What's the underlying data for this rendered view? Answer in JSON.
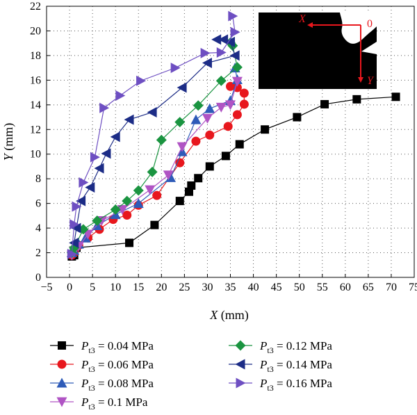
{
  "chart_data": {
    "type": "line",
    "xlabel": "X (mm)",
    "ylabel": "Y (mm)",
    "xlim": [
      -5,
      75
    ],
    "ylim": [
      0,
      22
    ],
    "xticks": [
      "−5",
      "0",
      "5",
      "10",
      "15",
      "20",
      "25",
      "30",
      "35",
      "40",
      "45",
      "50",
      "55",
      "60",
      "65",
      "70",
      "75"
    ],
    "yticks": [
      "0",
      "2",
      "4",
      "6",
      "8",
      "10",
      "12",
      "14",
      "16",
      "18",
      "20",
      "22"
    ],
    "grid": true,
    "legend_position": "bottom",
    "inset": {
      "x_label": "X",
      "origin_label": "0",
      "y_label": "Y",
      "arrow_color": "#e8171d"
    },
    "series": [
      {
        "name": "Pt3 = 0.04 MPa",
        "label_main": "P",
        "label_sub": "t3",
        "label_rest": " = 0.04 MPa",
        "marker": "square",
        "color": "#000000",
        "x": [
          0.5,
          1.0,
          1.5,
          13,
          18.5,
          24,
          26,
          26.5,
          28,
          30.5,
          34,
          37,
          42.5,
          49.5,
          55.5,
          62.5,
          71
        ],
        "y": [
          1.7,
          1.8,
          2.4,
          2.8,
          4.25,
          6.2,
          6.95,
          7.45,
          8.05,
          9.0,
          9.85,
          10.8,
          12.0,
          13.0,
          14.05,
          14.45,
          14.65
        ]
      },
      {
        "name": "Pt3 = 0.06 MPa",
        "label_main": "P",
        "label_sub": "t3",
        "label_rest": " = 0.06 MPa",
        "marker": "circle",
        "color": "#e8171d",
        "x": [
          0.5,
          1.0,
          2.0,
          4.0,
          6.5,
          9.5,
          12.5,
          15,
          19,
          24,
          27.5,
          30.5,
          34.5,
          36.5,
          38,
          38,
          36.5,
          35
        ],
        "y": [
          1.8,
          2.0,
          2.6,
          3.2,
          3.9,
          4.7,
          5.05,
          5.85,
          6.65,
          9.3,
          11.05,
          11.55,
          12.25,
          13.2,
          14.05,
          14.95,
          15.4,
          15.5
        ]
      },
      {
        "name": "Pt3 = 0.08 MPa",
        "label_main": "P",
        "label_sub": "t3",
        "label_rest": " = 0.08 MPa",
        "marker": "triangle-up",
        "color": "#2e5bb8",
        "x": [
          0.5,
          1.0,
          2.0,
          3.5,
          6.0,
          10,
          15,
          22,
          24.5,
          27.5,
          30.5,
          35,
          36.5,
          36
        ],
        "y": [
          2.0,
          2.2,
          2.7,
          3.2,
          4.2,
          5.1,
          6.0,
          8.1,
          10.2,
          12.8,
          13.7,
          14.35,
          16.05,
          17.0
        ]
      },
      {
        "name": "Pt3 = 0.1 MPa",
        "label_main": "P",
        "label_sub": "t3",
        "label_rest": " = 0.1 MPa",
        "marker": "triangle-down",
        "color": "#b054c4",
        "x": [
          0.5,
          1.0,
          2.0,
          4.0,
          7.0,
          11.5,
          17.5,
          21.5,
          24.5,
          30,
          33,
          35,
          36.5
        ],
        "y": [
          1.8,
          2.1,
          2.5,
          3.5,
          4.6,
          5.5,
          7.1,
          8.3,
          10.6,
          12.9,
          13.8,
          14.0,
          15.9
        ]
      },
      {
        "name": "Pt3 = 0.12 MPa",
        "label_main": "P",
        "label_sub": "t3",
        "label_rest": " = 0.12 MPa",
        "marker": "diamond",
        "color": "#1a9440",
        "x": [
          0.5,
          1.0,
          3.0,
          6.0,
          10,
          12.5,
          15,
          18,
          20,
          24,
          28,
          33,
          36.5,
          35.5,
          35
        ],
        "y": [
          2.0,
          2.4,
          3.9,
          4.6,
          5.5,
          6.2,
          7.05,
          8.55,
          11.15,
          12.6,
          13.95,
          15.95,
          17.05,
          18.8,
          19.05
        ]
      },
      {
        "name": "Pt3 = 0.14 MPa",
        "label_main": "P",
        "label_sub": "t3",
        "label_rest": " = 0.14 MPa",
        "marker": "triangle-left",
        "color": "#1c2c86",
        "x": [
          1.0,
          1.5,
          2.5,
          4.5,
          6.5,
          8.0,
          10,
          13,
          18,
          24.5,
          30,
          36,
          35,
          33.5,
          32
        ],
        "y": [
          2.8,
          4.0,
          6.2,
          7.3,
          8.85,
          10.05,
          11.4,
          12.8,
          13.4,
          15.4,
          17.4,
          18.0,
          19.1,
          19.3,
          19.3
        ]
      },
      {
        "name": "Pt3 = 0.16 MPa",
        "label_main": "P",
        "label_sub": "t3",
        "label_rest": " = 0.16 MPa",
        "marker": "triangle-right",
        "color": "#6e4fc2",
        "x": [
          0.5,
          1.0,
          1.5,
          3.0,
          5.5,
          7.5,
          11,
          15.5,
          23,
          29.5,
          33,
          36,
          35.5
        ],
        "y": [
          1.9,
          4.3,
          5.75,
          7.7,
          9.75,
          13.75,
          14.75,
          15.95,
          17.0,
          18.2,
          18.25,
          19.9,
          21.2
        ]
      }
    ]
  }
}
